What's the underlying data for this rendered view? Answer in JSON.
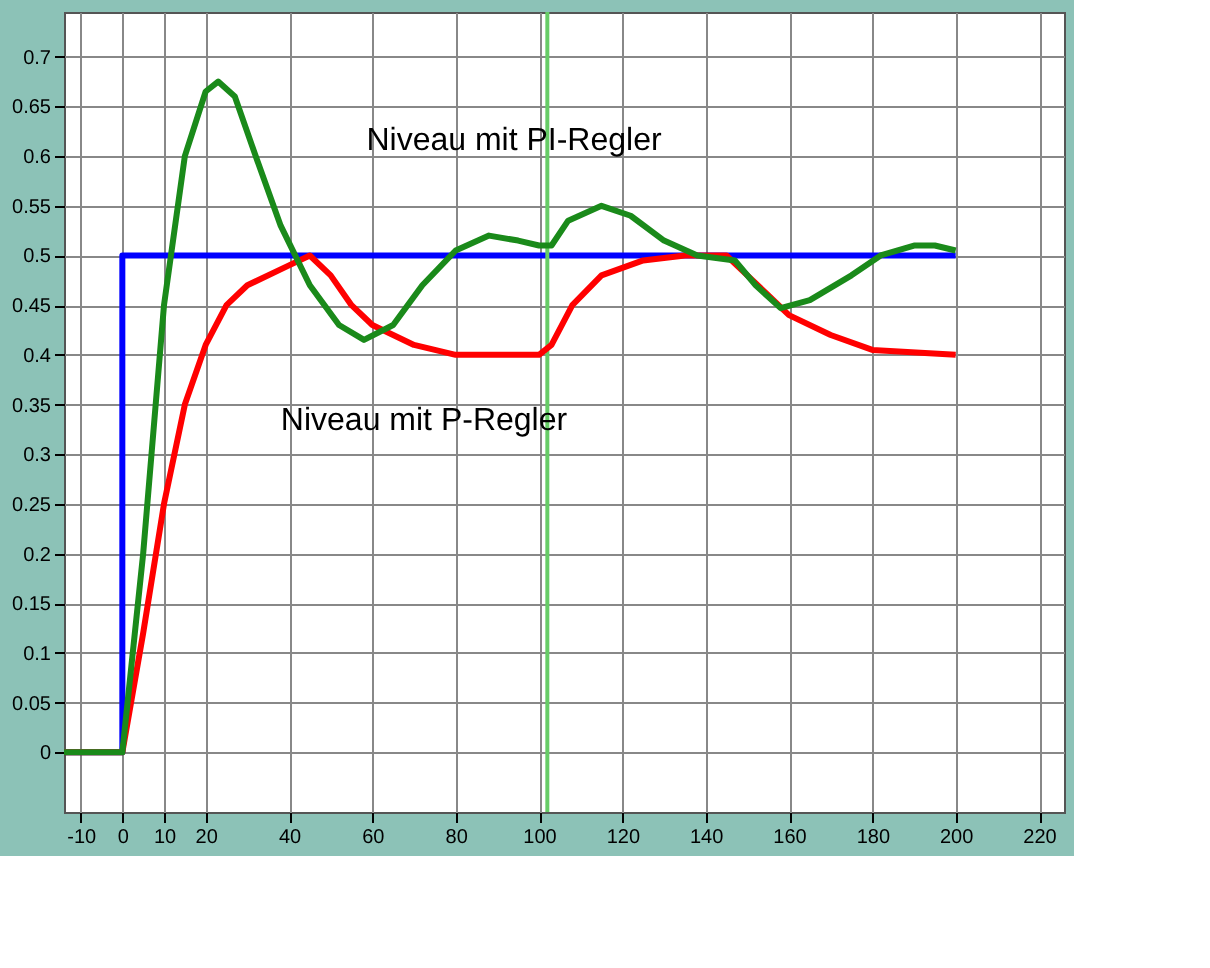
{
  "chart_data": {
    "type": "line",
    "xlim": [
      -14,
      226
    ],
    "ylim": [
      -0.06,
      0.745
    ],
    "xticks": [
      -10,
      0,
      10,
      20,
      40,
      60,
      80,
      100,
      120,
      140,
      160,
      180,
      200,
      220
    ],
    "yticks": [
      0,
      0.05,
      0.1,
      0.15,
      0.2,
      0.25,
      0.3,
      0.35,
      0.4,
      0.45,
      0.5,
      0.55,
      0.6,
      0.65,
      0.7
    ],
    "grid": true,
    "line_style": "solid",
    "marker": "none",
    "series": [
      {
        "color": "#0000ff",
        "x": [
          -14,
          0,
          0,
          200
        ],
        "values": [
          0,
          0,
          0.5,
          0.5
        ]
      },
      {
        "color": "#ff0000",
        "x": [
          -14,
          0,
          5,
          10,
          15,
          20,
          25,
          30,
          40,
          45,
          50,
          55,
          60,
          70,
          80,
          100,
          103,
          108,
          115,
          125,
          135,
          145,
          150,
          155,
          160,
          170,
          180,
          200
        ],
        "values": [
          0,
          0,
          0.12,
          0.25,
          0.35,
          0.41,
          0.45,
          0.47,
          0.49,
          0.5,
          0.48,
          0.45,
          0.43,
          0.41,
          0.4,
          0.4,
          0.41,
          0.45,
          0.48,
          0.495,
          0.5,
          0.5,
          0.48,
          0.46,
          0.44,
          0.42,
          0.405,
          0.4
        ]
      },
      {
        "color": "#1a8a1a",
        "x": [
          -14,
          0,
          5,
          10,
          15,
          20,
          23,
          27,
          32,
          38,
          45,
          52,
          58,
          65,
          72,
          80,
          88,
          95,
          100,
          103,
          107,
          115,
          122,
          130,
          138,
          147,
          152,
          158,
          165,
          175,
          182,
          190,
          195,
          200
        ],
        "values": [
          0,
          0,
          0.2,
          0.45,
          0.6,
          0.665,
          0.675,
          0.66,
          0.6,
          0.53,
          0.47,
          0.43,
          0.415,
          0.43,
          0.47,
          0.505,
          0.52,
          0.515,
          0.51,
          0.51,
          0.535,
          0.55,
          0.54,
          0.515,
          0.5,
          0.495,
          0.47,
          0.447,
          0.455,
          0.48,
          0.5,
          0.51,
          0.51,
          0.505
        ]
      }
    ],
    "ref_lines": [
      {
        "axis": "x",
        "value": 102,
        "color": "#66cc66"
      }
    ],
    "annotations": [
      "Niveau mit PI-Regler",
      "Niveau mit P-Regler"
    ]
  }
}
